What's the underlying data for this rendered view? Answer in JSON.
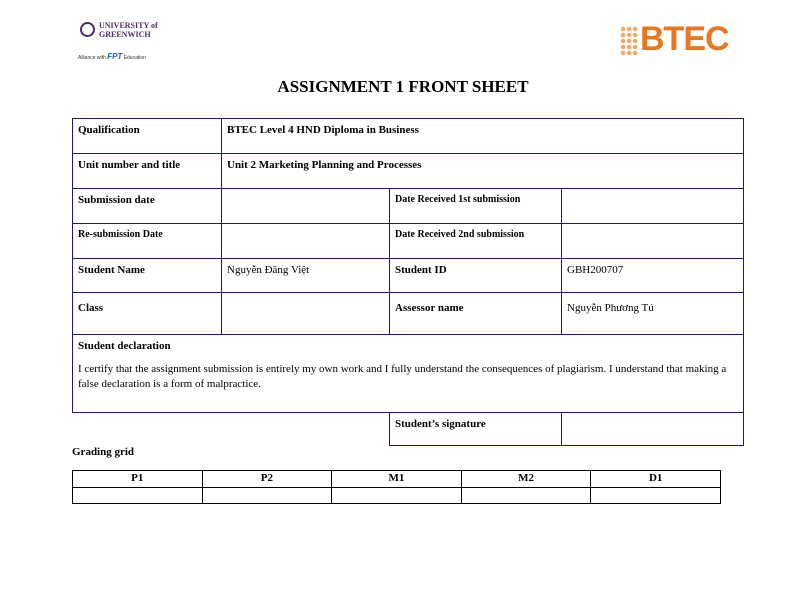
{
  "logos": {
    "left": {
      "university": "UNIVERSITY of GREENWICH",
      "alliance": "Alliance with",
      "fpt": "FPT",
      "education": "Education"
    },
    "right": {
      "text": "BTEC",
      "color": "#e87722"
    }
  },
  "title": "ASSIGNMENT 1 FRONT SHEET",
  "rows": {
    "qualification": {
      "label": "Qualification",
      "value": "BTEC Level 4 HND Diploma in Business"
    },
    "unit": {
      "label": "Unit number and title",
      "value": "Unit 2 Marketing Planning and Processes"
    },
    "submission": {
      "label": "Submission date",
      "value": "",
      "label2": "Date Received 1st submission",
      "value2": ""
    },
    "resubmission": {
      "label": "Re-submission Date",
      "value": "",
      "label2": "Date Received 2nd submission",
      "value2": ""
    },
    "student": {
      "label": "Student Name",
      "value": "Nguyễn Đăng Việt",
      "label2": "Student ID",
      "value2": "GBH200707"
    },
    "class": {
      "label": "Class",
      "value": "",
      "label2": "Assessor name",
      "value2": "Nguyễn Phương Tú"
    }
  },
  "declaration": {
    "heading": "Student declaration",
    "text": "I certify that the assignment submission is entirely my own work and I fully understand the consequences of plagiarism. I understand that making a false declaration is a form of malpractice."
  },
  "signature": {
    "label": "Student’s signature",
    "value": ""
  },
  "grading": {
    "heading": "Grading grid",
    "columns": [
      "P1",
      "P2",
      "M1",
      "M2",
      "D1"
    ]
  }
}
